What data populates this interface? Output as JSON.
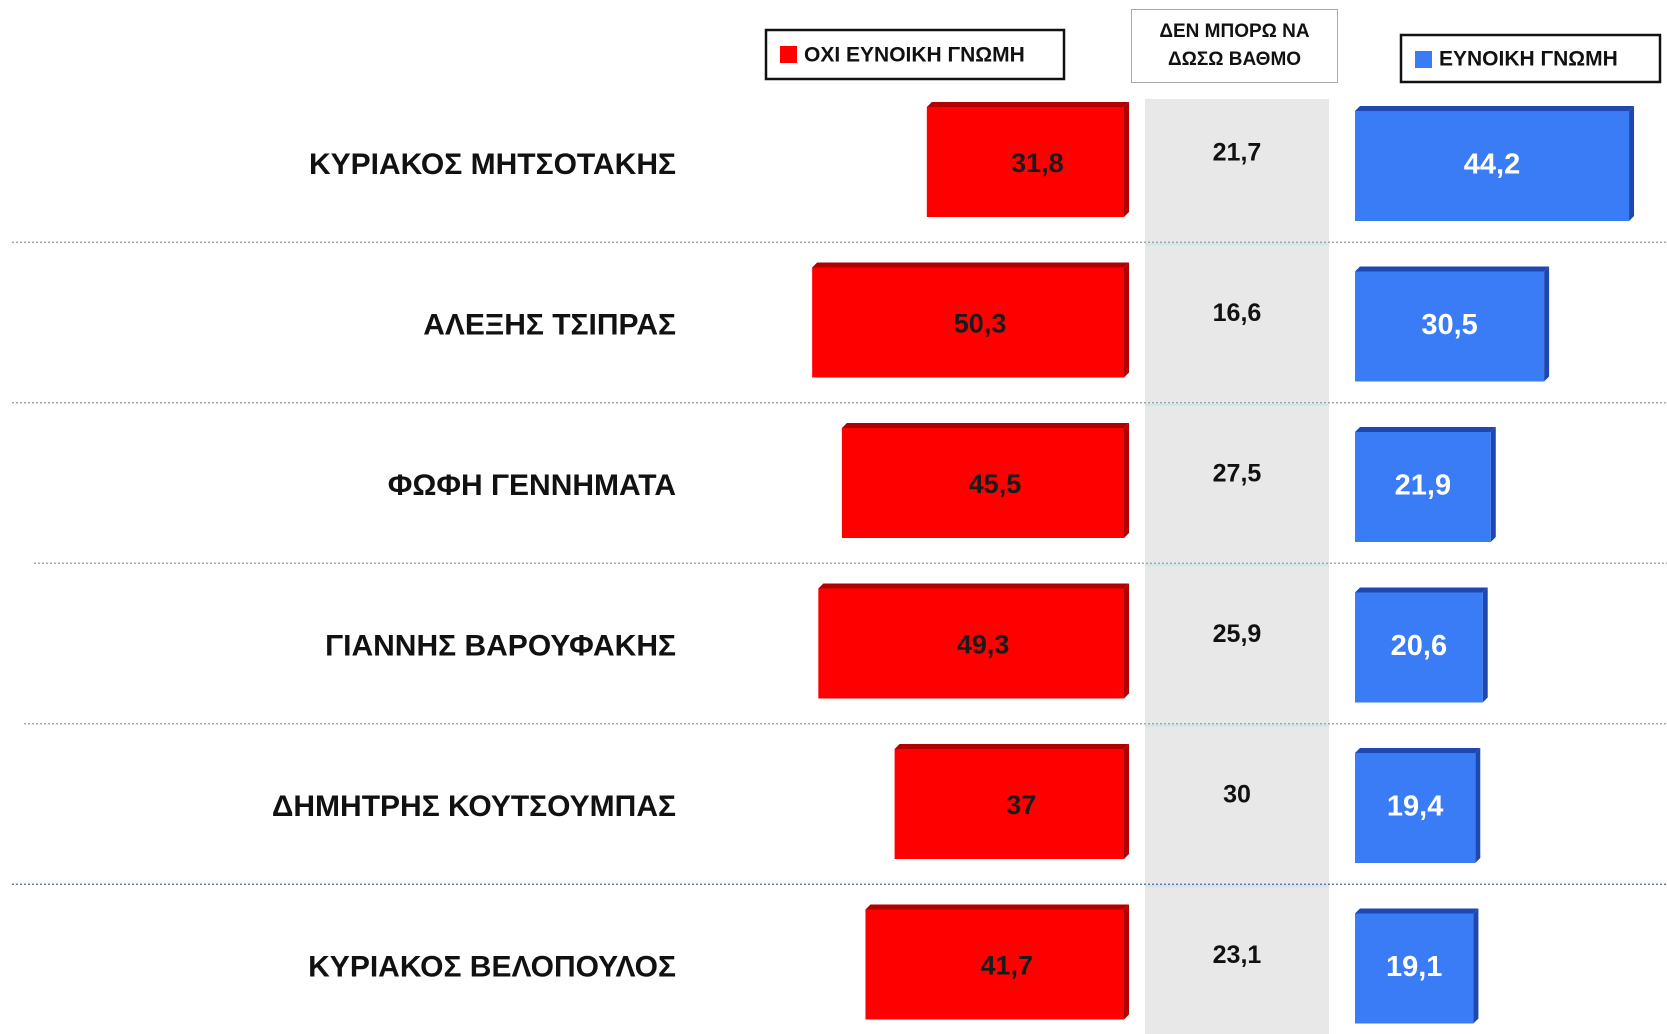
{
  "chart_data": {
    "type": "butterfly",
    "categories": [
      "ΚΥΡΙΑΚΟΣ ΜΗΤΣΟΤΑΚΗΣ",
      "ΑΛΕΞΗΣ ΤΣΙΠΡΑΣ",
      "ΦΩΦΗ ΓΕΝΝΗΜΑΤΑ",
      "ΓΙΑΝΝΗΣ ΒΑΡΟΥΦΑΚΗΣ",
      "ΔΗΜΗΤΡΗΣ ΚΟΥΤΣΟΥΜΠΑΣ",
      "ΚΥΡΙΑΚΟΣ ΒΕΛΟΠΟΥΛΟΣ"
    ],
    "series": [
      {
        "name": "ΟΧΙ ΕΥΝΟΙΚΗ ΓΝΩΜΗ",
        "color": "#ff0000",
        "values": [
          31.8,
          50.3,
          45.5,
          49.3,
          37,
          41.7
        ],
        "value_labels": [
          "31,8",
          "50,3",
          "45,5",
          "49,3",
          "37",
          "41,7"
        ]
      },
      {
        "name": "ΔΕΝ ΜΠΟΡΩ ΝΑ ΔΩΣΩ ΒΑΘΜΟ",
        "color": "#e8e8e8",
        "values": [
          21.7,
          16.6,
          27.5,
          25.9,
          30,
          23.1
        ],
        "value_labels": [
          "21,7",
          "16,6",
          "27,5",
          "25,9",
          "30",
          "23,1"
        ]
      },
      {
        "name": "ΕΥΝΟΙΚΗ ΓΝΩΜΗ",
        "color": "#3a7cf5",
        "values": [
          44.2,
          30.5,
          21.9,
          20.6,
          19.4,
          19.1
        ],
        "value_labels": [
          "44,2",
          "30,5",
          "21,9",
          "20,6",
          "19,4",
          "19,1"
        ]
      }
    ]
  }
}
